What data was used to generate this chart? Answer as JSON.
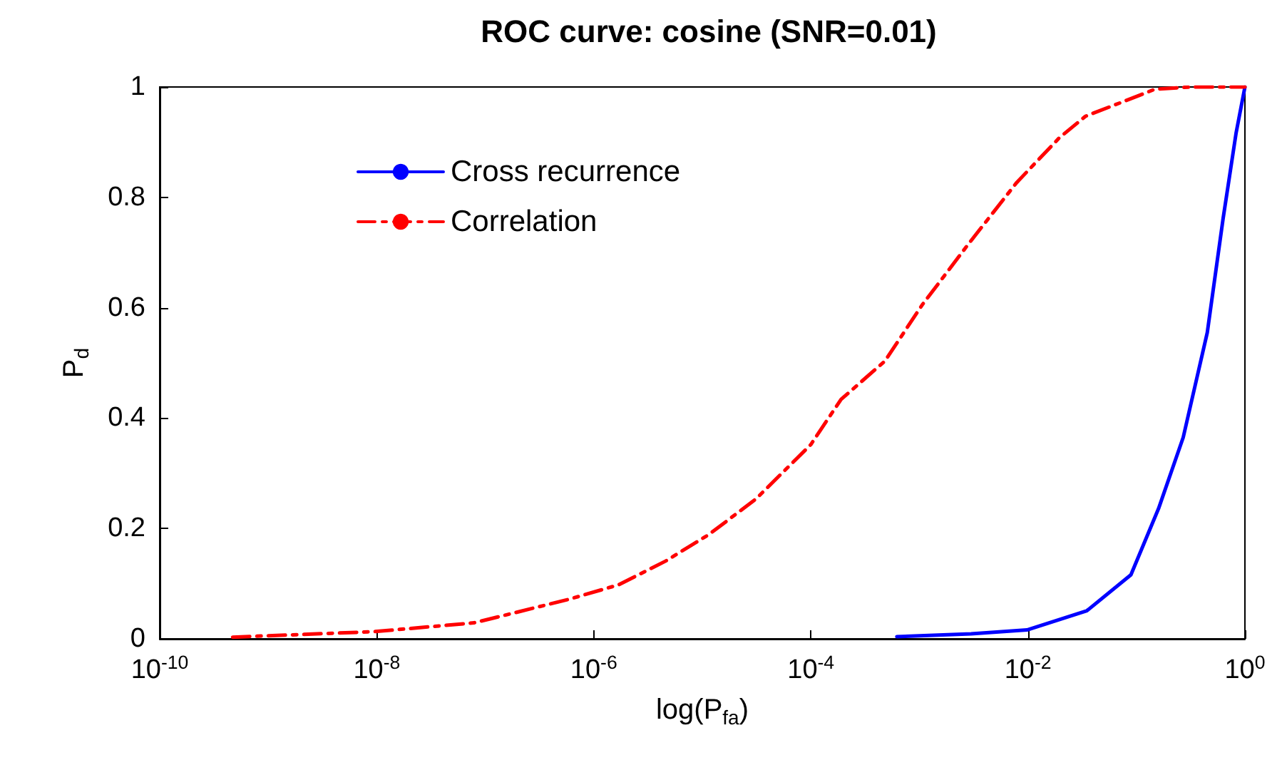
{
  "chart_data": {
    "type": "line",
    "title": "ROC curve: cosine (SNR=0.01)",
    "xlabel": "log(P$_{fa}$)",
    "ylabel": "P$_{d}$",
    "log": "x",
    "xlim": [
      1e-10,
      1
    ],
    "ylim": [
      0,
      1
    ],
    "xticks": [
      {
        "value": 1e-10,
        "label": "10$^{-10}$"
      },
      {
        "value": 1e-08,
        "label": "10$^{-8}$"
      },
      {
        "value": 1e-06,
        "label": "10$^{-6}$"
      },
      {
        "value": 0.0001,
        "label": "10$^{-4}$"
      },
      {
        "value": 0.01,
        "label": "10$^{-2}$"
      },
      {
        "value": 1,
        "label": "10$^{0}$"
      }
    ],
    "yticks": [
      0,
      0.2,
      0.4,
      0.6,
      0.8,
      1
    ],
    "grid": false,
    "legend": "top left",
    "marker": "none",
    "series": [
      {
        "name": "Cross recurrence",
        "color": "#0000ff",
        "line_style": "solid",
        "x": [
          0.00062,
          0.003,
          0.0098,
          0.035,
          0.089,
          0.16,
          0.27,
          0.45,
          0.63,
          0.83,
          1
        ],
        "values": [
          0.004,
          0.009,
          0.016,
          0.051,
          0.116,
          0.236,
          0.365,
          0.555,
          0.762,
          0.917,
          1
        ]
      },
      {
        "name": "Correlation",
        "color": "#ff0000",
        "line_style": "dashed",
        "x": [
          4.7e-10,
          9.5e-09,
          7.9e-08,
          6e-07,
          1.7e-06,
          4.6e-06,
          1.15e-05,
          3.1e-05,
          0.0001,
          0.00019,
          0.00048,
          0.00107,
          0.0029,
          0.0079,
          0.0195,
          0.034,
          0.107,
          0.148,
          0.32,
          1
        ],
        "values": [
          0.003,
          0.013,
          0.029,
          0.072,
          0.098,
          0.141,
          0.189,
          0.253,
          0.352,
          0.434,
          0.503,
          0.606,
          0.718,
          0.827,
          0.908,
          0.947,
          0.985,
          0.996,
          1,
          1
        ]
      }
    ]
  }
}
